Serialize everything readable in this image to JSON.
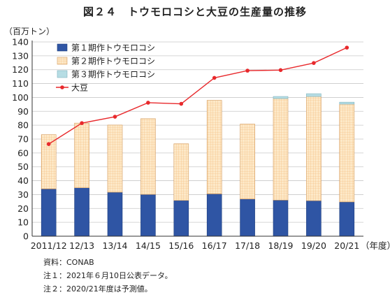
{
  "title": "図２４　トウモロコシと大豆の生産量の推移",
  "unit_label": "（百万トン）",
  "x_unit_label": "（年度）",
  "notes": [
    "資料：CONAB",
    "注１：2021年６月10日公表データ。",
    "注２：2020/21年度は予測値。"
  ],
  "colors": {
    "crop1": "#2f55a4",
    "crop2": "#fde9c8",
    "crop2_grid": "#f2b877",
    "crop3": "#b6dde4",
    "soy": "#e8292c",
    "grid": "#c8c8c8"
  },
  "chart_data": {
    "type": "bar",
    "stacked": true,
    "categories": [
      "2011/12",
      "12/13",
      "13/14",
      "14/15",
      "15/16",
      "16/17",
      "17/18",
      "18/19",
      "19/20",
      "20/21"
    ],
    "series": [
      {
        "name": "第１期作トウモロコシ",
        "kind": "bar",
        "values": [
          34.1,
          34.9,
          31.7,
          30.1,
          25.8,
          30.5,
          26.8,
          26.0,
          25.6,
          24.7
        ]
      },
      {
        "name": "第２期作トウモロコシ",
        "kind": "bar",
        "values": [
          39.1,
          46.6,
          48.4,
          54.6,
          40.8,
          67.4,
          54.0,
          73.2,
          75.1,
          70.5
        ]
      },
      {
        "name": "第３期作トウモロコシ",
        "kind": "bar",
        "values": [
          0,
          0,
          0,
          0,
          0,
          0,
          0,
          1.5,
          2.0,
          1.4
        ]
      },
      {
        "name": "大豆",
        "kind": "line",
        "values": [
          66.4,
          81.5,
          86.1,
          96.2,
          95.4,
          114.1,
          119.3,
          119.7,
          124.8,
          135.9
        ]
      }
    ],
    "ylim": [
      0,
      140
    ],
    "yticks": [
      0,
      10,
      20,
      30,
      40,
      50,
      60,
      70,
      80,
      90,
      100,
      110,
      120,
      130,
      140
    ],
    "grid": true,
    "legend_position": "top-left"
  }
}
